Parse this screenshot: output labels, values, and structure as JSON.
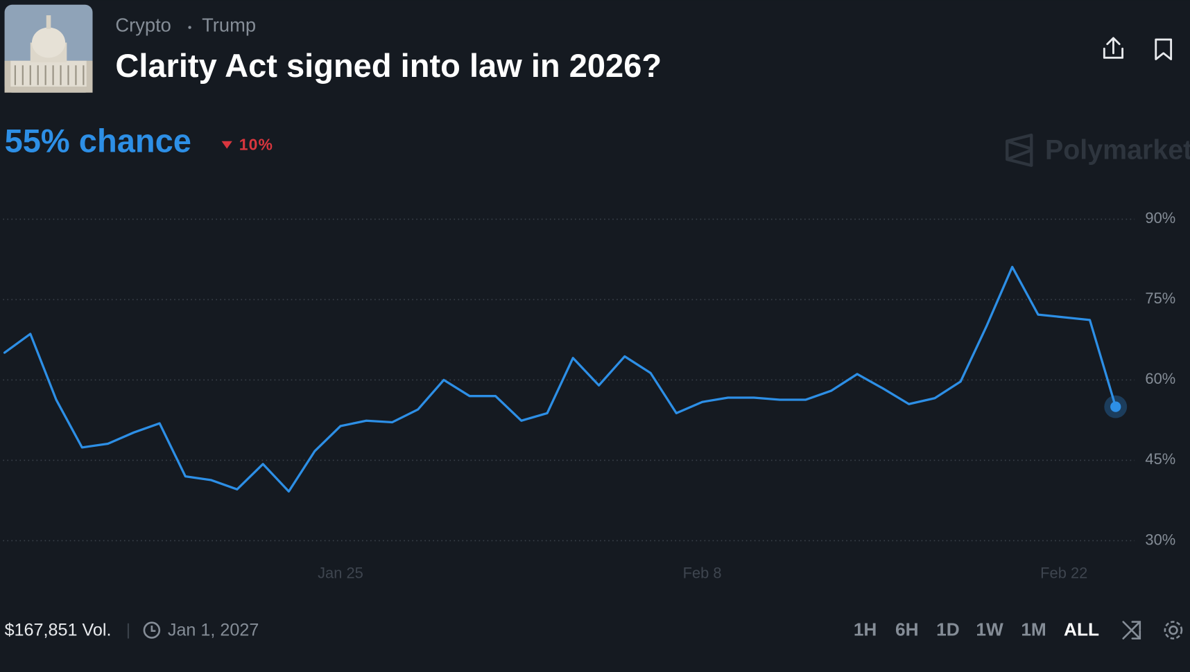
{
  "header": {
    "breadcrumbs": [
      "Crypto",
      "Trump"
    ],
    "title": "Clarity Act signed into law in 2026?",
    "headline": "55% chance",
    "change": "10%",
    "watermark": "Polymarket"
  },
  "chart_data": {
    "type": "line",
    "color": "#2d8fe6",
    "x": [
      "Jan 12",
      "Jan 13",
      "Jan 14",
      "Jan 15",
      "Jan 16",
      "Jan 17",
      "Jan 18",
      "Jan 19",
      "Jan 20",
      "Jan 21",
      "Jan 22",
      "Jan 23",
      "Jan 24",
      "Jan 25",
      "Jan 26",
      "Jan 27",
      "Jan 28",
      "Jan 29",
      "Jan 30",
      "Jan 31",
      "Feb 1",
      "Feb 2",
      "Feb 3",
      "Feb 4",
      "Feb 5",
      "Feb 6",
      "Feb 7",
      "Feb 8",
      "Feb 9",
      "Feb 10",
      "Feb 11",
      "Feb 12",
      "Feb 13",
      "Feb 14",
      "Feb 15",
      "Feb 16",
      "Feb 17",
      "Feb 18",
      "Feb 19",
      "Feb 20",
      "Feb 21",
      "Feb 22",
      "Feb 23",
      "Feb 24"
    ],
    "series": [
      {
        "name": "Yes",
        "color": "#2d8fe6",
        "values": [
          65.1,
          68.6,
          56.3,
          47.4,
          48.1,
          50.2,
          51.9,
          42,
          41.3,
          39.6,
          44.3,
          39.2,
          46.7,
          51.4,
          52.4,
          52.1,
          54.5,
          60,
          57,
          57,
          52.4,
          53.8,
          64.1,
          59,
          64.4,
          61.3,
          53.8,
          55.9,
          56.7,
          56.7,
          56.3,
          56.3,
          58,
          61.1,
          58.4,
          55.5,
          56.6,
          59.7,
          70,
          81.1,
          72.2,
          71.7,
          71.2,
          55
        ]
      }
    ],
    "xticks": [
      "Jan 25",
      "Feb 8",
      "Feb 22"
    ],
    "ylim": [
      30,
      90
    ],
    "yticks": [
      {
        "value": 30,
        "label": "30%"
      },
      {
        "value": 45,
        "label": "45%"
      },
      {
        "value": 60,
        "label": "60%"
      },
      {
        "value": 75,
        "label": "75%"
      },
      {
        "value": 90,
        "label": "90%"
      }
    ],
    "grid": true
  },
  "footer": {
    "volume": "$167,851 Vol.",
    "end_date": "Jan 1, 2027",
    "ranges": [
      "1H",
      "6H",
      "1D",
      "1W",
      "1M",
      "ALL"
    ],
    "active_range": "ALL"
  }
}
